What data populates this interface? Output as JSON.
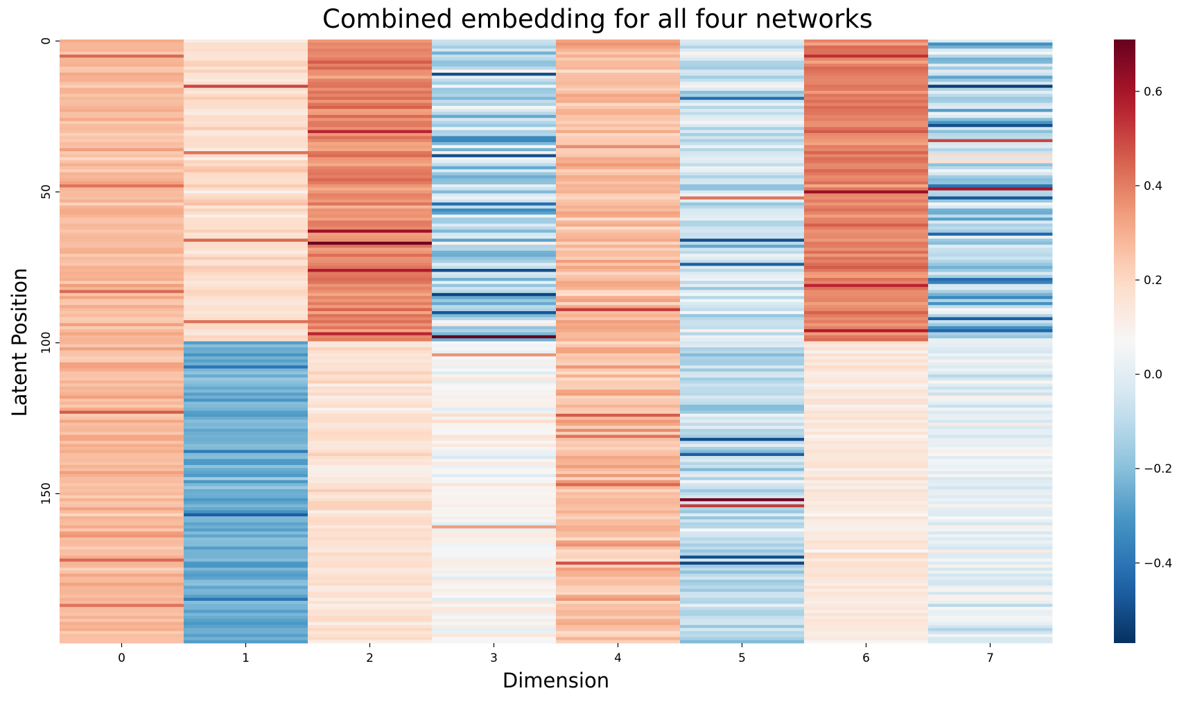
{
  "chart_data": {
    "type": "heatmap",
    "title": "Combined embedding for all four networks",
    "xlabel": "Dimension",
    "ylabel": "Latent Position",
    "x_tick_labels": [
      "0",
      "1",
      "2",
      "3",
      "4",
      "5",
      "6",
      "7"
    ],
    "y_tick_labels": [
      "0",
      "50",
      "100",
      "150"
    ],
    "y_tick_values": [
      0,
      50,
      100,
      150
    ],
    "n_rows": 200,
    "n_cols": 8,
    "colormap": "RdBu_r",
    "colormap_stops": [
      "#053061",
      "#2166ac",
      "#4393c3",
      "#92c5de",
      "#d1e5f0",
      "#f7f7f7",
      "#fddbc7",
      "#f4a582",
      "#d6604d",
      "#b2182b",
      "#67001f"
    ],
    "vmin": -0.57,
    "vmax": 0.71,
    "colorbar_ticks": [
      -0.4,
      -0.2,
      0.0,
      0.2,
      0.4,
      0.6
    ],
    "colorbar_tick_labels": [
      "−0.4",
      "−0.2",
      "0.0",
      "0.2",
      "0.4",
      "0.6"
    ],
    "column_profiles": [
      {
        "dimension": 0,
        "segments": [
          {
            "rows": [
              0,
              200
            ],
            "mean": 0.28,
            "spread": 0.06
          }
        ],
        "extremes": [
          [
            5,
            0.44
          ],
          [
            48,
            0.42
          ],
          [
            83,
            0.44
          ],
          [
            123,
            0.46
          ],
          [
            172,
            0.44
          ],
          [
            187,
            0.42
          ]
        ]
      },
      {
        "dimension": 1,
        "segments": [
          {
            "rows": [
              0,
              100
            ],
            "mean": 0.18,
            "spread": 0.06
          },
          {
            "rows": [
              100,
              200
            ],
            "mean": -0.24,
            "spread": 0.07
          }
        ],
        "extremes": [
          [
            15,
            0.5
          ],
          [
            37,
            0.42
          ],
          [
            66,
            0.44
          ],
          [
            93,
            0.42
          ],
          [
            108,
            -0.4
          ],
          [
            136,
            -0.38
          ],
          [
            157,
            -0.46
          ],
          [
            185,
            -0.4
          ]
        ]
      },
      {
        "dimension": 2,
        "segments": [
          {
            "rows": [
              0,
              100
            ],
            "mean": 0.38,
            "spread": 0.07
          },
          {
            "rows": [
              100,
              200
            ],
            "mean": 0.17,
            "spread": 0.06
          }
        ],
        "extremes": [
          [
            30,
            0.56
          ],
          [
            63,
            0.62
          ],
          [
            67,
            0.7
          ],
          [
            76,
            0.58
          ],
          [
            97,
            0.56
          ]
        ]
      },
      {
        "dimension": 3,
        "segments": [
          {
            "rows": [
              0,
              100
            ],
            "mean": -0.1,
            "spread": 0.2
          },
          {
            "rows": [
              100,
              200
            ],
            "mean": 0.08,
            "spread": 0.09
          }
        ],
        "extremes": [
          [
            11,
            -0.5
          ],
          [
            32,
            -0.34
          ],
          [
            38,
            -0.5
          ],
          [
            54,
            -0.42
          ],
          [
            76,
            -0.5
          ],
          [
            84,
            -0.52
          ],
          [
            90,
            -0.48
          ],
          [
            98,
            0.71
          ],
          [
            104,
            0.36
          ],
          [
            161,
            0.34
          ]
        ]
      },
      {
        "dimension": 4,
        "segments": [
          {
            "rows": [
              0,
              200
            ],
            "mean": 0.27,
            "spread": 0.08
          }
        ],
        "extremes": [
          [
            89,
            0.52
          ],
          [
            124,
            0.46
          ],
          [
            131,
            0.42
          ],
          [
            147,
            0.44
          ],
          [
            173,
            0.48
          ]
        ]
      },
      {
        "dimension": 5,
        "segments": [
          {
            "rows": [
              0,
              100
            ],
            "mean": -0.06,
            "spread": 0.14
          },
          {
            "rows": [
              100,
              200
            ],
            "mean": -0.1,
            "spread": 0.12
          }
        ],
        "extremes": [
          [
            19,
            -0.42
          ],
          [
            52,
            0.42
          ],
          [
            66,
            -0.5
          ],
          [
            74,
            -0.46
          ],
          [
            132,
            -0.5
          ],
          [
            137,
            -0.46
          ],
          [
            152,
            0.68
          ],
          [
            154,
            0.52
          ],
          [
            171,
            -0.5
          ],
          [
            173,
            -0.52
          ]
        ]
      },
      {
        "dimension": 6,
        "segments": [
          {
            "rows": [
              0,
              100
            ],
            "mean": 0.4,
            "spread": 0.07
          },
          {
            "rows": [
              100,
              200
            ],
            "mean": 0.14,
            "spread": 0.05
          }
        ],
        "extremes": [
          [
            5,
            0.54
          ],
          [
            50,
            0.62
          ],
          [
            81,
            0.56
          ],
          [
            96,
            0.58
          ]
        ]
      },
      {
        "dimension": 7,
        "segments": [
          {
            "rows": [
              0,
              100
            ],
            "mean": -0.1,
            "spread": 0.22
          },
          {
            "rows": [
              100,
              200
            ],
            "mean": 0.02,
            "spread": 0.1
          }
        ],
        "extremes": [
          [
            15,
            -0.54
          ],
          [
            28,
            -0.5
          ],
          [
            33,
            0.5
          ],
          [
            49,
            0.6
          ],
          [
            52,
            -0.48
          ],
          [
            64,
            -0.44
          ],
          [
            79,
            -0.42
          ],
          [
            92,
            -0.46
          ],
          [
            96,
            -0.44
          ]
        ]
      }
    ]
  }
}
